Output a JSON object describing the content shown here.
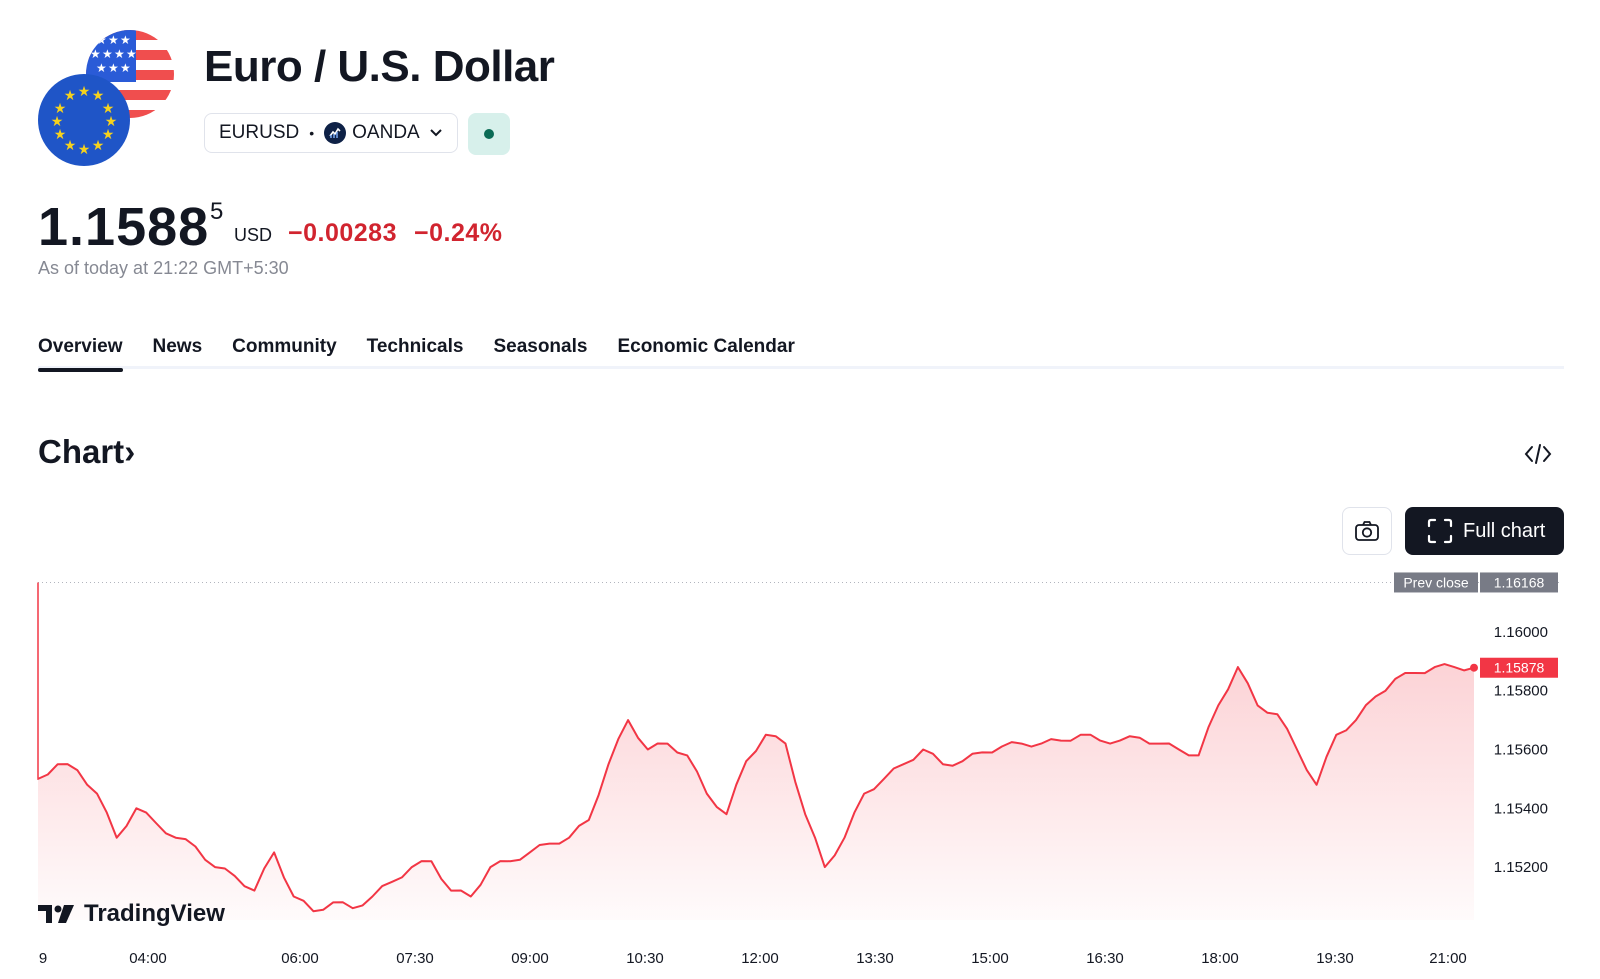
{
  "header": {
    "title": "Euro / U.S. Dollar",
    "symbol": "EURUSD",
    "separator": "•",
    "broker": "OANDA"
  },
  "quote": {
    "price_main": "1.1588",
    "price_sup": "5",
    "currency": "USD",
    "change_abs": "−0.00283",
    "change_pct": "−0.24%",
    "as_of": "As of today at 21:22 GMT+5:30"
  },
  "tabs": [
    {
      "label": "Overview",
      "active": true
    },
    {
      "label": "News",
      "active": false
    },
    {
      "label": "Community",
      "active": false
    },
    {
      "label": "Technicals",
      "active": false
    },
    {
      "label": "Seasonals",
      "active": false
    },
    {
      "label": "Economic Calendar",
      "active": false
    }
  ],
  "chart_section": {
    "heading": "Chart",
    "heading_chevron": "›",
    "full_chart_label": "Full chart",
    "watermark": "TradingView"
  },
  "colors": {
    "down": "#d1242f",
    "line": "#f23645",
    "status": "#0a6b55"
  },
  "chart_data": {
    "type": "area",
    "y_ticks": [
      "1.16000",
      "1.15800",
      "1.15600",
      "1.15400",
      "1.15200"
    ],
    "x_ticks": [
      "9",
      "04:00",
      "06:00",
      "07:30",
      "09:00",
      "10:30",
      "12:00",
      "13:30",
      "15:00",
      "16:30",
      "18:00",
      "19:30",
      "21:00"
    ],
    "ylim": [
      1.1502,
      1.1619
    ],
    "prev_close_label": "Prev close",
    "prev_close": "1.16168",
    "last_price": "1.15878",
    "grid": false,
    "x": [
      "03:15",
      "03:30",
      "03:45",
      "04:00",
      "04:15",
      "04:30",
      "04:45",
      "05:00",
      "05:15",
      "05:30",
      "05:45",
      "06:00",
      "06:15",
      "06:30",
      "06:45",
      "07:00",
      "07:15",
      "07:30",
      "07:45",
      "08:00",
      "08:15",
      "08:30",
      "08:45",
      "09:00",
      "09:15",
      "09:30",
      "09:45",
      "10:00",
      "10:15",
      "10:30",
      "10:45",
      "11:00",
      "11:15",
      "11:30",
      "11:45",
      "12:00",
      "12:15",
      "12:30",
      "12:45",
      "13:00",
      "13:15",
      "13:30",
      "13:45",
      "14:00",
      "14:15",
      "14:30",
      "14:45",
      "15:00",
      "15:15",
      "15:30",
      "15:45",
      "16:00",
      "16:15",
      "16:30",
      "16:45",
      "17:00",
      "17:15",
      "17:30",
      "17:45",
      "18:00",
      "18:15",
      "18:30",
      "18:45",
      "19:00",
      "19:15",
      "19:30",
      "19:45",
      "20:00",
      "20:15",
      "20:30",
      "20:45",
      "21:00",
      "21:15",
      "21:22"
    ],
    "values": [
      1.155,
      1.1555,
      1.1553,
      1.1545,
      1.153,
      1.154,
      1.1535,
      1.153,
      1.1527,
      1.152,
      1.1517,
      1.1512,
      1.1525,
      1.151,
      1.1505,
      1.1508,
      1.1506,
      1.151,
      1.1515,
      1.152,
      1.1522,
      1.1512,
      1.151,
      1.152,
      1.1522,
      1.1525,
      1.1528,
      1.153,
      1.1536,
      1.1555,
      1.157,
      1.156,
      1.1562,
      1.1558,
      1.1545,
      1.1538,
      1.1556,
      1.1565,
      1.1562,
      1.1538,
      1.152,
      1.153,
      1.1545,
      1.155,
      1.1555,
      1.156,
      1.1555,
      1.1556,
      1.1559,
      1.1561,
      1.1562,
      1.1562,
      1.1563,
      1.1565,
      1.1563,
      1.1563,
      1.1564,
      1.1562,
      1.156,
      1.1558,
      1.1575,
      1.1588,
      1.1575,
      1.1572,
      1.156,
      1.1548,
      1.1565,
      1.157,
      1.1578,
      1.1584,
      1.1586,
      1.1588,
      1.1588,
      1.15878
    ]
  }
}
